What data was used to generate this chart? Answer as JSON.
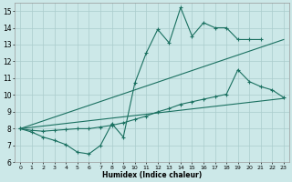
{
  "xlabel": "Humidex (Indice chaleur)",
  "background_color": "#cce8e8",
  "grid_color": "#aacccc",
  "line_color": "#1a7060",
  "xlim": [
    -0.5,
    23.5
  ],
  "ylim": [
    6.0,
    15.5
  ],
  "xticks": [
    0,
    1,
    2,
    3,
    4,
    5,
    6,
    7,
    8,
    9,
    10,
    11,
    12,
    13,
    14,
    15,
    16,
    17,
    18,
    19,
    20,
    21,
    22,
    23
  ],
  "yticks": [
    6,
    7,
    8,
    9,
    10,
    11,
    12,
    13,
    14,
    15
  ],
  "line1_x": [
    0,
    1,
    2,
    3,
    4,
    5,
    6,
    7,
    8,
    9,
    10,
    11,
    12,
    13,
    14,
    15,
    16,
    17,
    18,
    19,
    20,
    21
  ],
  "line1_y": [
    8.0,
    7.8,
    7.5,
    7.3,
    7.05,
    6.6,
    6.5,
    7.0,
    8.3,
    7.5,
    10.7,
    12.5,
    13.9,
    13.1,
    15.2,
    13.5,
    14.3,
    14.0,
    14.0,
    13.3,
    13.3,
    13.3
  ],
  "line2_x": [
    0,
    23
  ],
  "line2_y": [
    8.0,
    13.3
  ],
  "line3_x": [
    0,
    23
  ],
  "line3_y": [
    8.0,
    9.8
  ],
  "line4_x": [
    0,
    1,
    2,
    3,
    4,
    5,
    6,
    7,
    8,
    9,
    10,
    11,
    12,
    13,
    14,
    15,
    16,
    17,
    18,
    19,
    20,
    21,
    22,
    23
  ],
  "line4_y": [
    8.0,
    7.9,
    7.85,
    7.9,
    7.95,
    8.0,
    8.0,
    8.1,
    8.2,
    8.35,
    8.55,
    8.75,
    9.0,
    9.2,
    9.45,
    9.6,
    9.75,
    9.9,
    10.05,
    11.5,
    10.8,
    10.5,
    10.3,
    9.85
  ]
}
